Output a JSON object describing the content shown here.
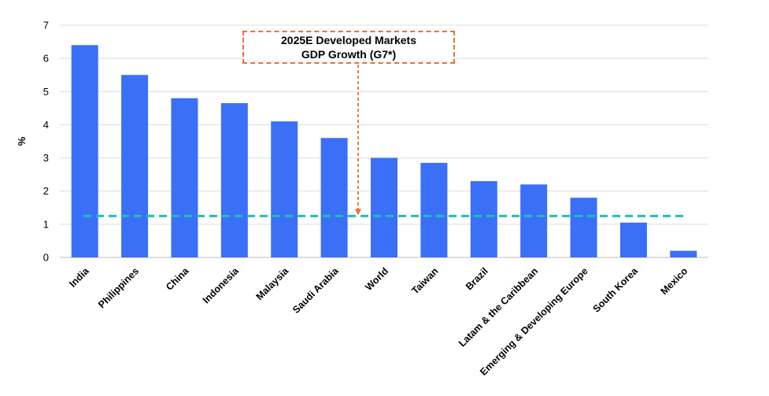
{
  "chart_data": {
    "type": "bar",
    "title": "",
    "xlabel": "",
    "ylabel": "%",
    "ylim": [
      0,
      7
    ],
    "yticks": [
      0,
      1,
      2,
      3,
      4,
      5,
      6,
      7
    ],
    "grid": true,
    "categories": [
      "India",
      "Philippines",
      "China",
      "Indonesia",
      "Malaysia",
      "Saudi Arabia",
      "World",
      "Taiwan",
      "Brazil",
      "Latam & the Caribbean",
      "Emerging & Developing Europe",
      "South Korea",
      "Mexico"
    ],
    "values": [
      6.4,
      5.5,
      4.8,
      4.65,
      4.1,
      3.6,
      3.0,
      2.85,
      2.3,
      2.2,
      1.8,
      1.05,
      0.2
    ],
    "bar_color": "#3a6ff8",
    "reference_line": {
      "value": 1.25,
      "color": "#1fc0b4",
      "label_line1": "2025E Developed Markets",
      "label_line2": "GDP Growth (G7*)",
      "annotation_color": "#f26b3a"
    }
  }
}
